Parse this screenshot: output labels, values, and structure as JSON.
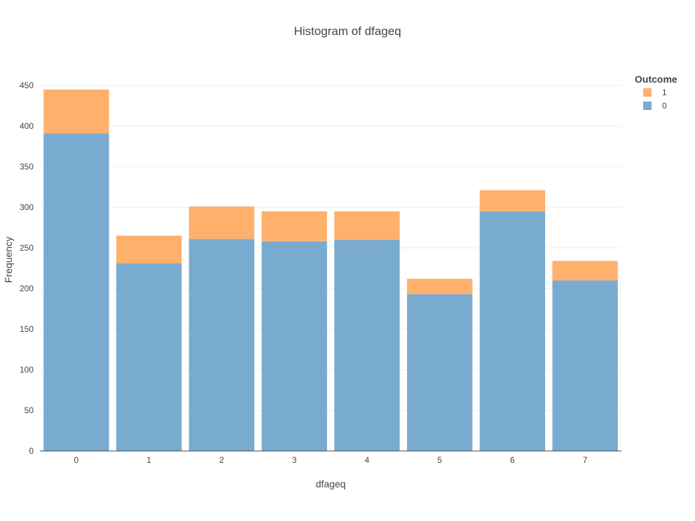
{
  "chart_data": {
    "type": "bar",
    "barmode": "stack",
    "title": "Histogram of dfageq",
    "xlabel": "dfageq",
    "ylabel": "Frequency",
    "categories": [
      "0",
      "1",
      "2",
      "3",
      "4",
      "5",
      "6",
      "7"
    ],
    "series": [
      {
        "name": "0",
        "color": "#79abd1",
        "values": [
          391,
          231,
          261,
          258,
          260,
          193,
          295,
          210
        ]
      },
      {
        "name": "1",
        "color": "#ffb16c",
        "values": [
          54,
          34,
          40,
          37,
          35,
          19,
          26,
          24
        ]
      }
    ],
    "ylim": [
      0,
      450
    ],
    "yticks": [
      0,
      50,
      100,
      150,
      200,
      250,
      300,
      350,
      400,
      450
    ],
    "grid": true,
    "legend": {
      "title": "Outcome",
      "placement": "top-right",
      "order": [
        "1",
        "0"
      ]
    }
  }
}
